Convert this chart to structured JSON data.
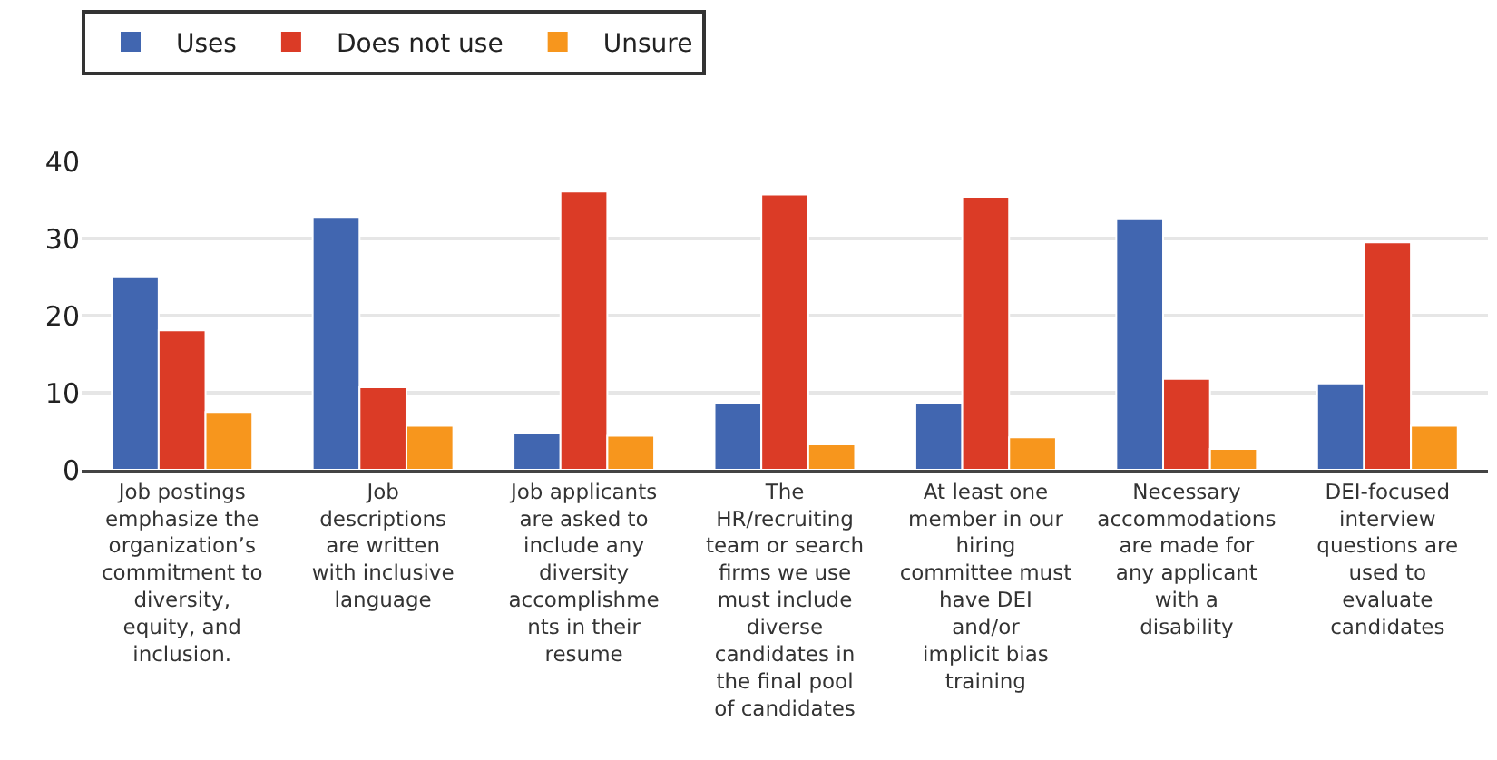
{
  "chart_data": {
    "type": "bar",
    "categories": [
      "Job postings emphasize the organization’s commitment to diversity, equity, and inclusion.",
      "Job descriptions are written with inclusive language",
      "Job applicants are asked to include any diversity accomplishments in their resume",
      "The HR/recruiting team or search firms we use must include diverse candidates in the final pool of candidates",
      "At least one member in our hiring committee must have DEI and/or implicit bias training",
      "Necessary accommodations are made for any applicant with a disability",
      "DEI-focused interview questions are used to evaluate candidates"
    ],
    "series": [
      {
        "name": "Uses",
        "color": "#4166b0",
        "values": [
          25.1,
          32.8,
          4.8,
          8.7,
          8.6,
          32.5,
          11.2
        ]
      },
      {
        "name": "Does not use",
        "color": "#db3b26",
        "values": [
          18.1,
          10.7,
          36.1,
          35.7,
          35.4,
          11.8,
          29.5
        ]
      },
      {
        "name": "Unsure",
        "color": "#f7961d",
        "values": [
          7.5,
          5.7,
          4.4,
          3.3,
          4.2,
          2.7,
          5.7
        ]
      }
    ],
    "ylim": [
      0,
      40
    ],
    "yticks": [
      0,
      10,
      20,
      30,
      40
    ],
    "grid": "y",
    "legend": "top left"
  }
}
